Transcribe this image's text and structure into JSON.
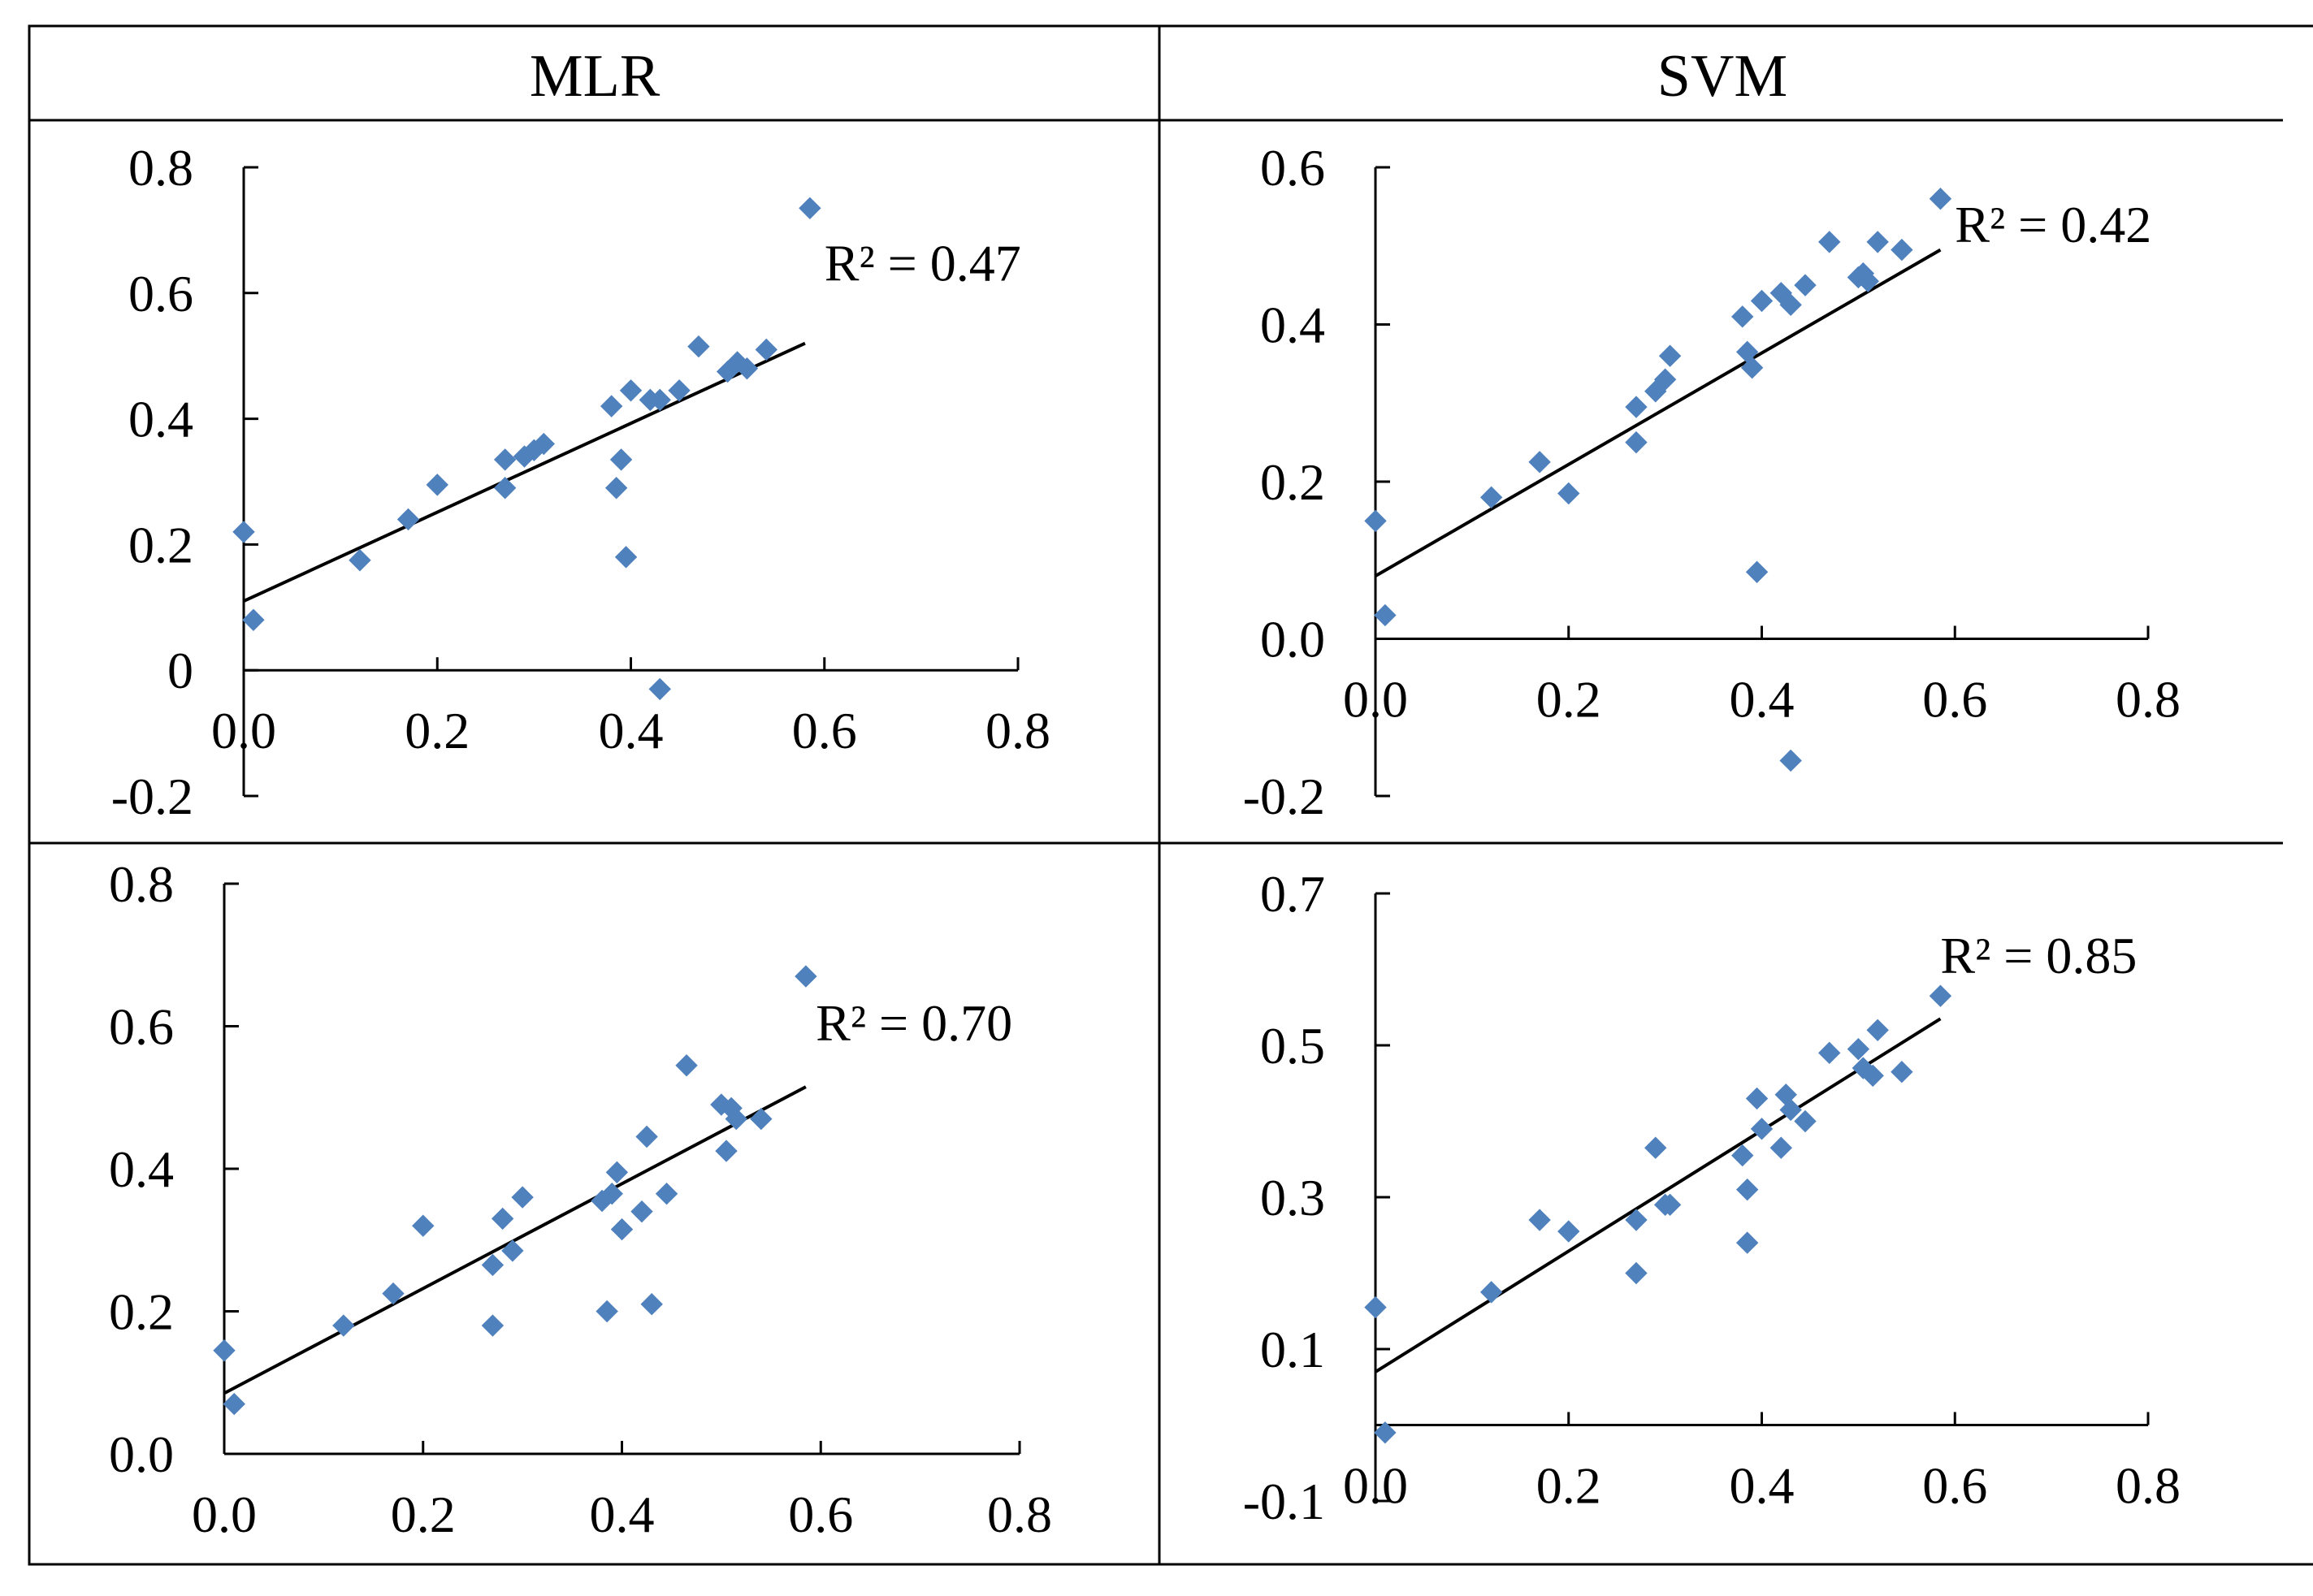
{
  "headers": {
    "left": "MLR",
    "right": "SVM"
  },
  "colors": {
    "marker": "#4F81BD",
    "line": "#000000",
    "border": "#000000"
  },
  "chart_data": [
    {
      "type": "scatter",
      "panel": "MLR-top",
      "xlim": [
        0.0,
        0.8
      ],
      "ylim": [
        -0.2,
        0.8
      ],
      "xticks": [
        0.0,
        0.2,
        0.4,
        0.6,
        0.8
      ],
      "xtick_labels": [
        "0.0",
        "0.2",
        "0.4",
        "0.6",
        "0.8"
      ],
      "yticks": [
        -0.2,
        0.0,
        0.2,
        0.4,
        0.6,
        0.8
      ],
      "ytick_labels": [
        "-0.2",
        "0",
        "0.2",
        "0.4",
        "0.6",
        "0.8"
      ],
      "points": [
        [
          0.0,
          0.22
        ],
        [
          0.01,
          0.08
        ],
        [
          0.12,
          0.175
        ],
        [
          0.17,
          0.24
        ],
        [
          0.2,
          0.295
        ],
        [
          0.27,
          0.335
        ],
        [
          0.27,
          0.29
        ],
        [
          0.29,
          0.34
        ],
        [
          0.3,
          0.35
        ],
        [
          0.31,
          0.36
        ],
        [
          0.38,
          0.42
        ],
        [
          0.385,
          0.29
        ],
        [
          0.39,
          0.335
        ],
        [
          0.395,
          0.18
        ],
        [
          0.4,
          0.445
        ],
        [
          0.42,
          0.43
        ],
        [
          0.43,
          0.43
        ],
        [
          0.43,
          -0.03
        ],
        [
          0.45,
          0.445
        ],
        [
          0.47,
          0.515
        ],
        [
          0.5,
          0.475
        ],
        [
          0.51,
          0.49
        ],
        [
          0.52,
          0.48
        ],
        [
          0.54,
          0.51
        ],
        [
          0.585,
          0.735
        ]
      ],
      "trendline": [
        [
          0.0,
          0.11
        ],
        [
          0.58,
          0.52
        ]
      ],
      "annotation": {
        "text": "R² = 0.47",
        "x": 0.6,
        "y": 0.62
      }
    },
    {
      "type": "scatter",
      "panel": "SVM-top",
      "xlim": [
        0.0,
        0.8
      ],
      "ylim": [
        -0.2,
        0.6
      ],
      "xticks": [
        0.0,
        0.2,
        0.4,
        0.6,
        0.8
      ],
      "xtick_labels": [
        "0.0",
        "0.2",
        "0.4",
        "0.6",
        "0.8"
      ],
      "yticks": [
        -0.2,
        0.0,
        0.2,
        0.4,
        0.6
      ],
      "ytick_labels": [
        "-0.2",
        "0.0",
        "0.2",
        "0.4",
        "0.6"
      ],
      "points": [
        [
          0.0,
          0.15
        ],
        [
          0.01,
          0.03
        ],
        [
          0.12,
          0.18
        ],
        [
          0.17,
          0.225
        ],
        [
          0.2,
          0.185
        ],
        [
          0.27,
          0.295
        ],
        [
          0.27,
          0.25
        ],
        [
          0.29,
          0.315
        ],
        [
          0.3,
          0.33
        ],
        [
          0.305,
          0.36
        ],
        [
          0.38,
          0.41
        ],
        [
          0.385,
          0.365
        ],
        [
          0.39,
          0.345
        ],
        [
          0.395,
          0.085
        ],
        [
          0.4,
          0.43
        ],
        [
          0.42,
          0.44
        ],
        [
          0.43,
          0.425
        ],
        [
          0.43,
          -0.155
        ],
        [
          0.445,
          0.45
        ],
        [
          0.47,
          0.505
        ],
        [
          0.5,
          0.46
        ],
        [
          0.505,
          0.465
        ],
        [
          0.51,
          0.455
        ],
        [
          0.52,
          0.505
        ],
        [
          0.545,
          0.495
        ],
        [
          0.585,
          0.56
        ]
      ],
      "trendline": [
        [
          0.0,
          0.08
        ],
        [
          0.585,
          0.495
        ]
      ],
      "annotation": {
        "text": "R² = 0.42",
        "x": 0.6,
        "y": 0.505
      }
    },
    {
      "type": "scatter",
      "panel": "MLR-bottom",
      "xlim": [
        0.0,
        0.8
      ],
      "ylim": [
        0.0,
        0.8
      ],
      "xticks": [
        0.0,
        0.2,
        0.4,
        0.6,
        0.8
      ],
      "xtick_labels": [
        "0.0",
        "0.2",
        "0.4",
        "0.6",
        "0.8"
      ],
      "yticks": [
        0.0,
        0.2,
        0.4,
        0.6,
        0.8
      ],
      "ytick_labels": [
        "0.0",
        "0.2",
        "0.4",
        "0.6",
        "0.8"
      ],
      "points": [
        [
          0.0,
          0.145
        ],
        [
          0.01,
          0.07
        ],
        [
          0.12,
          0.18
        ],
        [
          0.17,
          0.225
        ],
        [
          0.2,
          0.32
        ],
        [
          0.27,
          0.265
        ],
        [
          0.27,
          0.18
        ],
        [
          0.28,
          0.33
        ],
        [
          0.29,
          0.285
        ],
        [
          0.3,
          0.36
        ],
        [
          0.38,
          0.355
        ],
        [
          0.385,
          0.2
        ],
        [
          0.39,
          0.365
        ],
        [
          0.395,
          0.395
        ],
        [
          0.4,
          0.315
        ],
        [
          0.42,
          0.34
        ],
        [
          0.425,
          0.445
        ],
        [
          0.43,
          0.21
        ],
        [
          0.445,
          0.365
        ],
        [
          0.465,
          0.545
        ],
        [
          0.5,
          0.49
        ],
        [
          0.505,
          0.425
        ],
        [
          0.51,
          0.485
        ],
        [
          0.515,
          0.47
        ],
        [
          0.54,
          0.47
        ],
        [
          0.585,
          0.67
        ]
      ],
      "trendline": [
        [
          0.0,
          0.085
        ],
        [
          0.585,
          0.515
        ]
      ],
      "annotation": {
        "text": "R² = 0.70",
        "x": 0.595,
        "y": 0.58
      }
    },
    {
      "type": "scatter",
      "panel": "SVM-bottom",
      "xlim": [
        0.0,
        0.8
      ],
      "ylim": [
        -0.1,
        0.7
      ],
      "xticks": [
        0.0,
        0.2,
        0.4,
        0.6,
        0.8
      ],
      "xtick_labels": [
        "0.0",
        "0.2",
        "0.4",
        "0.6",
        "0.8"
      ],
      "yticks": [
        -0.1,
        0.1,
        0.3,
        0.5,
        0.7
      ],
      "ytick_labels": [
        "-0.1",
        "0.1",
        "0.3",
        "0.5",
        "0.7"
      ],
      "points": [
        [
          0.0,
          0.155
        ],
        [
          0.01,
          -0.01
        ],
        [
          0.12,
          0.175
        ],
        [
          0.17,
          0.27
        ],
        [
          0.2,
          0.255
        ],
        [
          0.27,
          0.27
        ],
        [
          0.27,
          0.2
        ],
        [
          0.29,
          0.365
        ],
        [
          0.3,
          0.29
        ],
        [
          0.305,
          0.29
        ],
        [
          0.38,
          0.355
        ],
        [
          0.385,
          0.31
        ],
        [
          0.385,
          0.24
        ],
        [
          0.395,
          0.43
        ],
        [
          0.4,
          0.39
        ],
        [
          0.42,
          0.365
        ],
        [
          0.425,
          0.435
        ],
        [
          0.43,
          0.415
        ],
        [
          0.445,
          0.4
        ],
        [
          0.47,
          0.49
        ],
        [
          0.5,
          0.495
        ],
        [
          0.505,
          0.47
        ],
        [
          0.515,
          0.46
        ],
        [
          0.52,
          0.52
        ],
        [
          0.545,
          0.465
        ],
        [
          0.585,
          0.565
        ]
      ],
      "trendline": [
        [
          0.0,
          0.07
        ],
        [
          0.585,
          0.535
        ]
      ],
      "annotation": {
        "text": "R² = 0.85",
        "x": 0.585,
        "y": 0.595
      }
    }
  ]
}
